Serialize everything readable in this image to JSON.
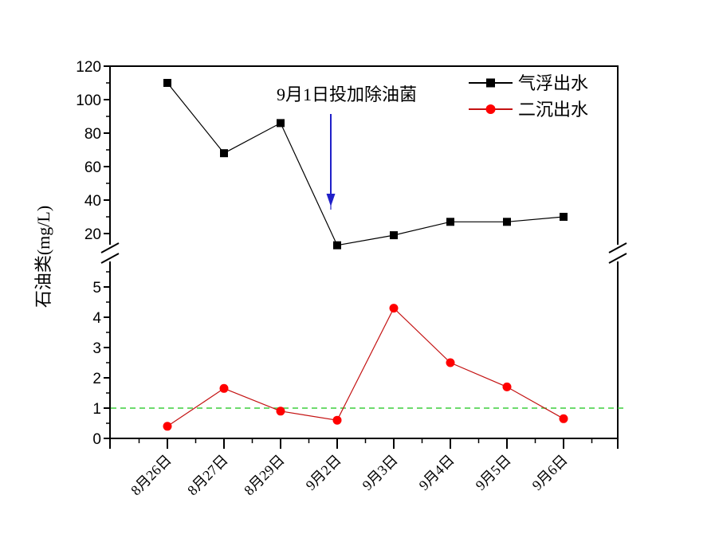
{
  "chart_data": {
    "type": "line",
    "title": "",
    "ylabel": "石油类(mg/L)",
    "xlabel": "",
    "categories": [
      "8月26日",
      "8月27日",
      "8月29日",
      "9月2日",
      "9月3日",
      "9月4日",
      "9月5日",
      "9月6日"
    ],
    "series": [
      {
        "name": "气浮出水",
        "axis_section": "upper",
        "marker": "square",
        "marker_color": "#000000",
        "line_color": "#000000",
        "values": [
          110,
          68,
          86,
          13,
          19,
          27,
          27,
          30
        ]
      },
      {
        "name": "二沉出水",
        "axis_section": "lower",
        "marker": "circle",
        "marker_color": "#ff0000",
        "line_color": "#c41212",
        "values": [
          0.4,
          1.65,
          0.9,
          0.6,
          4.3,
          2.5,
          1.7,
          0.65
        ]
      }
    ],
    "y_axis": {
      "broken": true,
      "upper_major_ticks": [
        20,
        40,
        60,
        80,
        100,
        120
      ],
      "upper_minor_ticks": [
        30,
        50,
        70,
        90,
        110
      ],
      "lower_major_ticks": [
        0,
        1,
        2,
        3,
        4,
        5
      ],
      "lower_minor_ticks": [
        0.5,
        1.5,
        2.5,
        3.5,
        4.5,
        5.5
      ],
      "upper_range": [
        20,
        120
      ],
      "lower_range": [
        0,
        5.8
      ]
    },
    "reference_line": {
      "value": 1,
      "color": "#3dce3d",
      "style": "dashed"
    },
    "annotation": {
      "text": "9月1日投加除油菌",
      "arrow_color": "#2020c8"
    },
    "legend": {
      "position": "top-right",
      "entries": [
        "气浮出水",
        "二沉出水"
      ]
    },
    "grid": false,
    "axis_color": "#000000",
    "background": "#ffffff"
  }
}
